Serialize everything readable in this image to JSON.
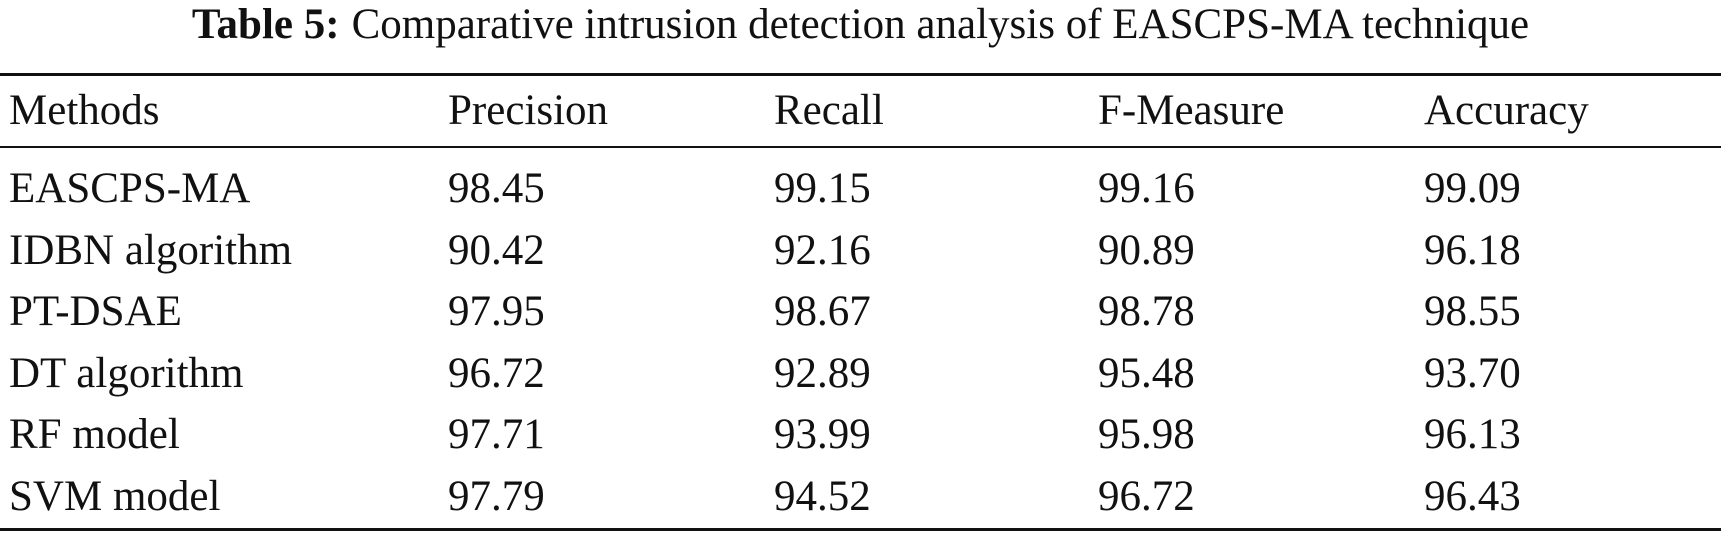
{
  "table": {
    "label": "Table 5:",
    "title": "Comparative intrusion detection analysis of EASCPS-MA technique",
    "header": [
      "Methods",
      "Precision",
      "Recall",
      "F-Measure",
      "Accuracy"
    ],
    "rows": [
      [
        "EASCPS-MA",
        "98.45",
        "99.15",
        "99.16",
        "99.09"
      ],
      [
        "IDBN algorithm",
        "90.42",
        "92.16",
        "90.89",
        "96.18"
      ],
      [
        "PT-DSAE",
        "97.95",
        "98.67",
        "98.78",
        "98.55"
      ],
      [
        "DT algorithm",
        "96.72",
        "92.89",
        "95.48",
        "93.70"
      ],
      [
        "RF model",
        "97.71",
        "93.99",
        "95.98",
        "96.13"
      ],
      [
        "SVM model",
        "97.79",
        "94.52",
        "96.72",
        "96.43"
      ]
    ]
  }
}
